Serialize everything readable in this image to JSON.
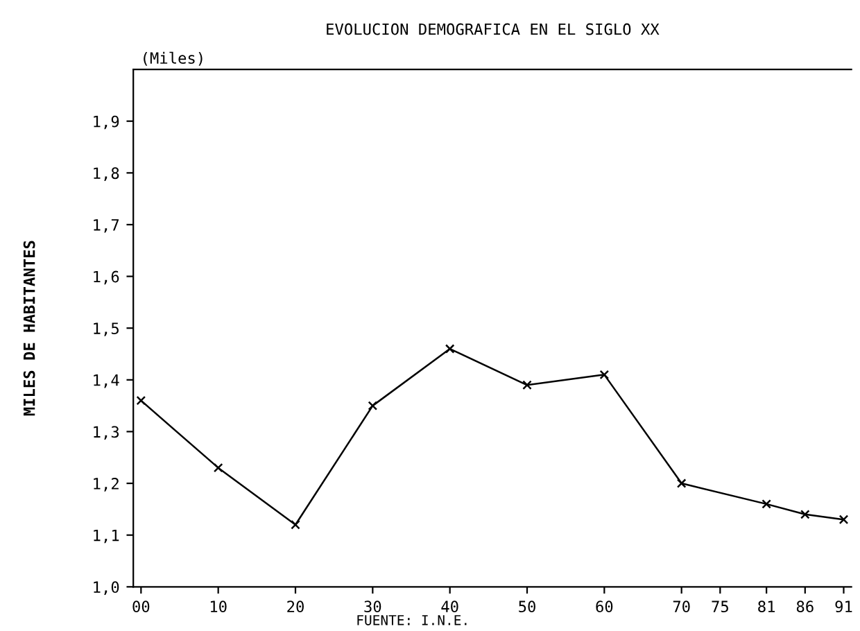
{
  "chart_data": {
    "type": "line",
    "title": "EVOLUCION DEMOGRAFICA EN EL SIGLO XX",
    "ylabel": "MILES DE HABITANTES",
    "annotations": [
      "(Miles)",
      "FUENTE: I.N.E."
    ],
    "x": [
      1900,
      1910,
      1920,
      1930,
      1940,
      1950,
      1960,
      1970,
      1981,
      1986,
      1991
    ],
    "series": [
      {
        "color": "#000000",
        "values": [
          1.36,
          1.23,
          1.12,
          1.35,
          1.46,
          1.39,
          1.41,
          1.2,
          1.16,
          1.14,
          1.13
        ]
      }
    ],
    "xlim": [
      1899,
      1992
    ],
    "xticks": [
      {
        "value": 1900,
        "label": "00"
      },
      {
        "value": 1910,
        "label": "10"
      },
      {
        "value": 1920,
        "label": "20"
      },
      {
        "value": 1930,
        "label": "30"
      },
      {
        "value": 1940,
        "label": "40"
      },
      {
        "value": 1950,
        "label": "50"
      },
      {
        "value": 1960,
        "label": "60"
      },
      {
        "value": 1970,
        "label": "70"
      },
      {
        "value": 1975,
        "label": "75"
      },
      {
        "value": 1981,
        "label": "81"
      },
      {
        "value": 1986,
        "label": "86"
      },
      {
        "value": 1991,
        "label": "91"
      }
    ],
    "ylim": [
      1.0,
      2.0
    ],
    "yticks": [
      {
        "value": 1.0,
        "label": "1,0"
      },
      {
        "value": 1.1,
        "label": "1,1"
      },
      {
        "value": 1.2,
        "label": "1,2"
      },
      {
        "value": 1.3,
        "label": "1,3"
      },
      {
        "value": 1.4,
        "label": "1,4"
      },
      {
        "value": 1.5,
        "label": "1,5"
      },
      {
        "value": 1.6,
        "label": "1,6"
      },
      {
        "value": 1.7,
        "label": "1,7"
      },
      {
        "value": 1.8,
        "label": "1,8"
      },
      {
        "value": 1.9,
        "label": "1,9"
      }
    ],
    "grid": false,
    "marker": "cross",
    "line_style": "solid"
  }
}
